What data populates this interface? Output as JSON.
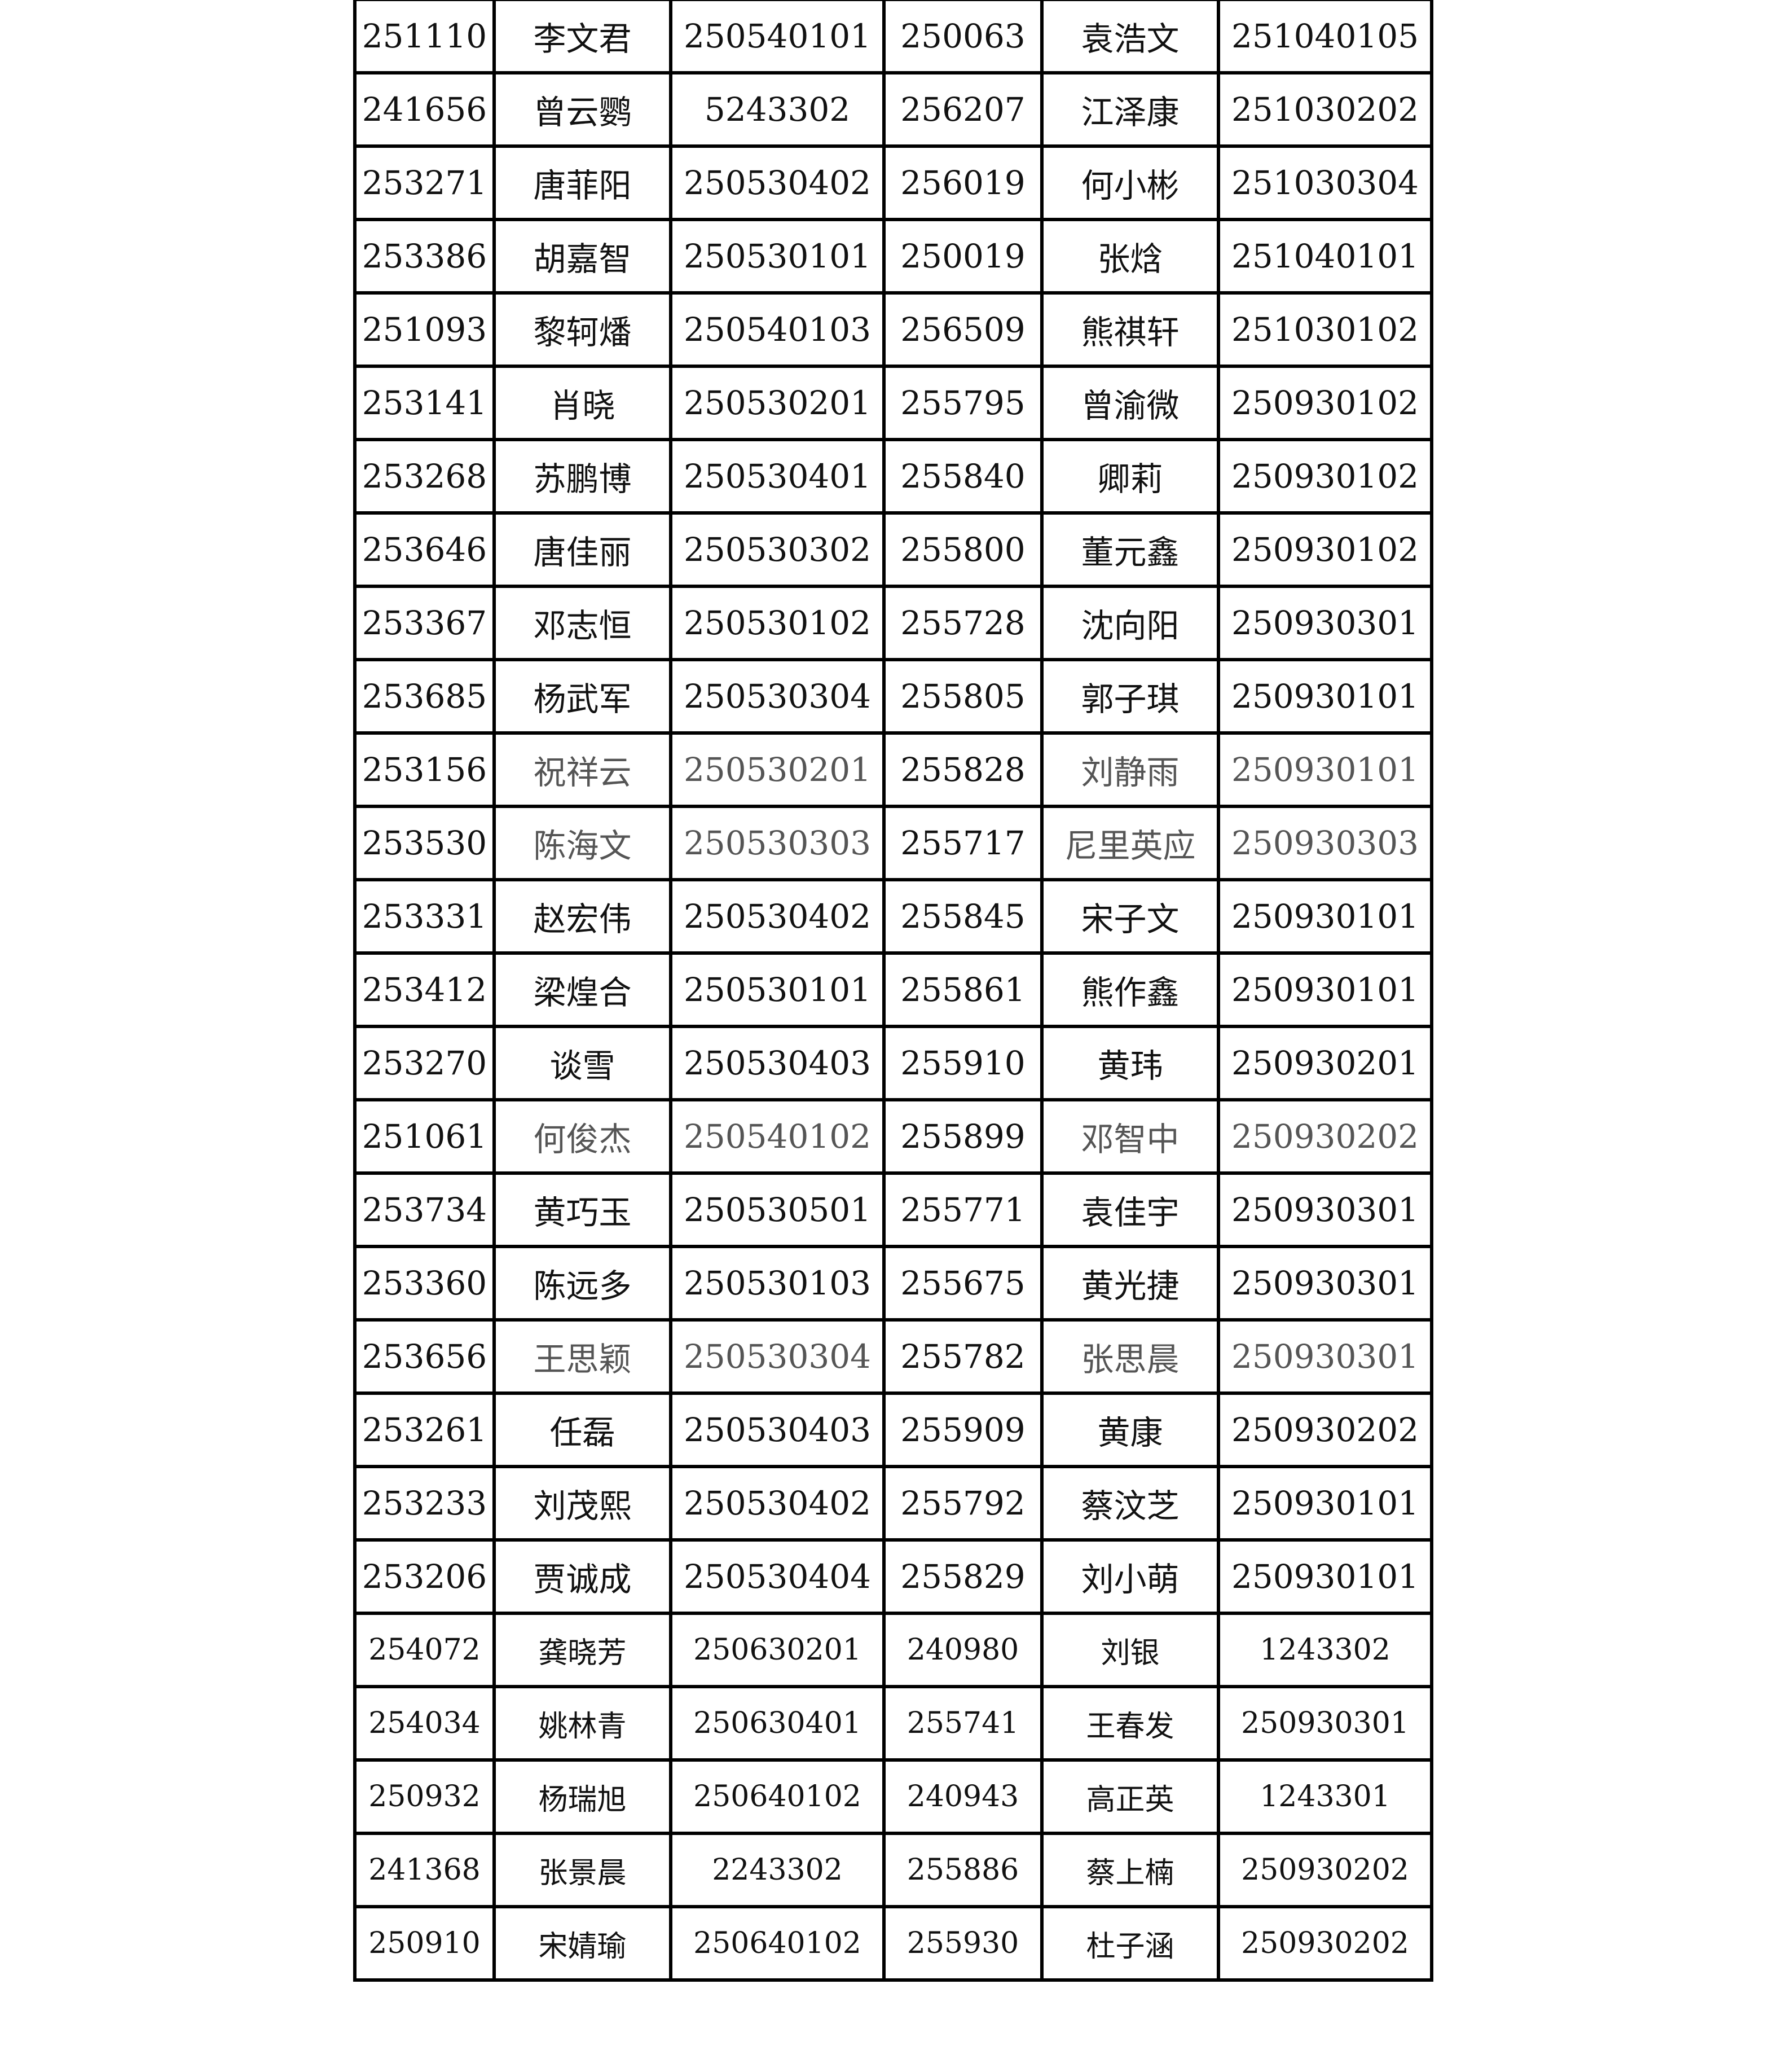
{
  "rows": [
    {
      "id1": "251110",
      "name1": "李文君",
      "code1": "250540101",
      "id2": "250063",
      "name2": "袁浩文",
      "code2": "251040105"
    },
    {
      "id1": "241656",
      "name1": "曾云鹦",
      "code1": "5243302",
      "id2": "256207",
      "name2": "江泽康",
      "code2": "251030202"
    },
    {
      "id1": "253271",
      "name1": "唐菲阳",
      "code1": "250530402",
      "id2": "256019",
      "name2": "何小彬",
      "code2": "251030304"
    },
    {
      "id1": "253386",
      "name1": "胡嘉智",
      "code1": "250530101",
      "id2": "250019",
      "name2": "张焓",
      "code2": "251040101"
    },
    {
      "id1": "251093",
      "name1": "黎轲燔",
      "code1": "250540103",
      "id2": "256509",
      "name2": "熊祺轩",
      "code2": "251030102"
    },
    {
      "id1": "253141",
      "name1": "肖晓",
      "code1": "250530201",
      "id2": "255795",
      "name2": "曾渝微",
      "code2": "250930102"
    },
    {
      "id1": "253268",
      "name1": "苏鹏博",
      "code1": "250530401",
      "id2": "255840",
      "name2": "卿莉",
      "code2": "250930102"
    },
    {
      "id1": "253646",
      "name1": "唐佳丽",
      "code1": "250530302",
      "id2": "255800",
      "name2": "董元鑫",
      "code2": "250930102"
    },
    {
      "id1": "253367",
      "name1": "邓志恒",
      "code1": "250530102",
      "id2": "255728",
      "name2": "沈向阳",
      "code2": "250930301"
    },
    {
      "id1": "253685",
      "name1": "杨武军",
      "code1": "250530304",
      "id2": "255805",
      "name2": "郭子琪",
      "code2": "250930101"
    },
    {
      "id1": "253156",
      "name1": "祝祥云",
      "code1": "250530201",
      "id2": "255828",
      "name2": "刘静雨",
      "code2": "250930101",
      "muted": true
    },
    {
      "id1": "253530",
      "name1": "陈海文",
      "code1": "250530303",
      "id2": "255717",
      "name2": "尼里英应",
      "code2": "250930303",
      "muted": true
    },
    {
      "id1": "253331",
      "name1": "赵宏伟",
      "code1": "250530402",
      "id2": "255845",
      "name2": "宋子文",
      "code2": "250930101"
    },
    {
      "id1": "253412",
      "name1": "梁煌合",
      "code1": "250530101",
      "id2": "255861",
      "name2": "熊作鑫",
      "code2": "250930101"
    },
    {
      "id1": "253270",
      "name1": "谈雪",
      "code1": "250530403",
      "id2": "255910",
      "name2": "黄玮",
      "code2": "250930201"
    },
    {
      "id1": "251061",
      "name1": "何俊杰",
      "code1": "250540102",
      "id2": "255899",
      "name2": "邓智中",
      "code2": "250930202",
      "muted": true
    },
    {
      "id1": "253734",
      "name1": "黄巧玉",
      "code1": "250530501",
      "id2": "255771",
      "name2": "袁佳宇",
      "code2": "250930301"
    },
    {
      "id1": "253360",
      "name1": "陈远多",
      "code1": "250530103",
      "id2": "255675",
      "name2": "黄光捷",
      "code2": "250930301"
    },
    {
      "id1": "253656",
      "name1": "王思颖",
      "code1": "250530304",
      "id2": "255782",
      "name2": "张思晨",
      "code2": "250930301",
      "muted": true
    },
    {
      "id1": "253261",
      "name1": "任磊",
      "code1": "250530403",
      "id2": "255909",
      "name2": "黄康",
      "code2": "250930202"
    },
    {
      "id1": "253233",
      "name1": "刘茂熙",
      "code1": "250530402",
      "id2": "255792",
      "name2": "蔡汶芝",
      "code2": "250930101"
    },
    {
      "id1": "253206",
      "name1": "贾诚成",
      "code1": "250530404",
      "id2": "255829",
      "name2": "刘小萌",
      "code2": "250930101"
    },
    {
      "id1": "254072",
      "name1": "龚晓芳",
      "code1": "250630201",
      "id2": "240980",
      "name2": "刘银",
      "code2": "1243302",
      "small": true
    },
    {
      "id1": "254034",
      "name1": "姚林青",
      "code1": "250630401",
      "id2": "255741",
      "name2": "王春发",
      "code2": "250930301",
      "small": true
    },
    {
      "id1": "250932",
      "name1": "杨瑞旭",
      "code1": "250640102",
      "id2": "240943",
      "name2": "高正英",
      "code2": "1243301",
      "small": true
    },
    {
      "id1": "241368",
      "name1": "张景晨",
      "code1": "2243302",
      "id2": "255886",
      "name2": "蔡上楠",
      "code2": "250930202",
      "small": true
    },
    {
      "id1": "250910",
      "name1": "宋婧瑜",
      "code1": "250640102",
      "id2": "255930",
      "name2": "杜子涵",
      "code2": "250930202",
      "small": true
    }
  ]
}
